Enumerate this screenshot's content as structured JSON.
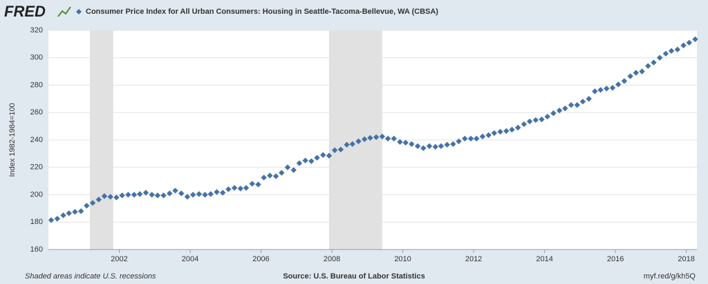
{
  "logo": "FRED",
  "footer": {
    "note": "Shaded areas indicate U.S. recessions",
    "source": "Source: U.S. Bureau of Labor Statistics",
    "link": "myf.red/g/kh5Q"
  },
  "chart_data": {
    "type": "scatter",
    "ylabel": "Index 1982-1984=100",
    "xlim": [
      2000,
      2018.3
    ],
    "ylim": [
      160,
      320
    ],
    "xticks": [
      2002,
      2004,
      2006,
      2008,
      2010,
      2012,
      2014,
      2016,
      2018
    ],
    "yticks": [
      160,
      180,
      200,
      220,
      240,
      260,
      280,
      300,
      320
    ],
    "grid": true,
    "recessions": [
      [
        2001.17,
        2001.83
      ],
      [
        2007.92,
        2009.42
      ]
    ],
    "x": [
      2000.08,
      2000.25,
      2000.42,
      2000.58,
      2000.75,
      2000.92,
      2001.08,
      2001.25,
      2001.42,
      2001.58,
      2001.75,
      2001.92,
      2002.08,
      2002.25,
      2002.42,
      2002.58,
      2002.75,
      2002.92,
      2003.08,
      2003.25,
      2003.42,
      2003.58,
      2003.75,
      2003.92,
      2004.08,
      2004.25,
      2004.42,
      2004.58,
      2004.75,
      2004.92,
      2005.08,
      2005.25,
      2005.42,
      2005.58,
      2005.75,
      2005.92,
      2006.08,
      2006.25,
      2006.42,
      2006.58,
      2006.75,
      2006.92,
      2007.08,
      2007.25,
      2007.42,
      2007.58,
      2007.75,
      2007.92,
      2008.08,
      2008.25,
      2008.42,
      2008.58,
      2008.75,
      2008.92,
      2009.08,
      2009.25,
      2009.42,
      2009.58,
      2009.75,
      2009.92,
      2010.08,
      2010.25,
      2010.42,
      2010.58,
      2010.75,
      2010.92,
      2011.08,
      2011.25,
      2011.42,
      2011.58,
      2011.75,
      2011.92,
      2012.08,
      2012.25,
      2012.42,
      2012.58,
      2012.75,
      2012.92,
      2013.08,
      2013.25,
      2013.42,
      2013.58,
      2013.75,
      2013.92,
      2014.08,
      2014.25,
      2014.42,
      2014.58,
      2014.75,
      2014.92,
      2015.08,
      2015.25,
      2015.42,
      2015.58,
      2015.75,
      2015.92,
      2016.08,
      2016.25,
      2016.42,
      2016.58,
      2016.75,
      2016.92,
      2017.08,
      2017.25,
      2017.42,
      2017.58,
      2017.75,
      2017.92,
      2018.08,
      2018.25
    ],
    "series": [
      {
        "name": "Consumer Price Index for All Urban Consumers: Housing in Seattle-Tacoma-Bellevue, WA (CBSA)",
        "color": "#4572a7",
        "values": [
          181.5,
          182.5,
          185,
          186.5,
          187.5,
          188,
          192,
          194,
          196.5,
          199,
          198.5,
          198,
          199.5,
          200,
          200,
          200.5,
          201.5,
          200,
          199.5,
          199.5,
          201,
          203,
          201,
          198.5,
          200,
          200.5,
          200,
          200.5,
          202,
          201.5,
          204,
          205,
          204.5,
          205,
          208,
          207.5,
          212.5,
          214,
          213.5,
          216,
          220,
          218,
          223,
          225,
          224.5,
          227,
          229,
          228.5,
          232.5,
          233,
          236.5,
          237,
          239,
          240.5,
          241.5,
          242,
          242.5,
          241,
          241,
          238.5,
          238,
          237,
          235.5,
          234,
          235.5,
          235,
          235.5,
          236.5,
          237,
          239,
          241,
          241,
          241,
          242.5,
          243.5,
          245,
          246,
          246.5,
          247.5,
          249,
          251.5,
          253.5,
          254.5,
          255,
          257,
          259.5,
          261.5,
          263,
          265.5,
          265.5,
          268,
          270,
          275.5,
          276.5,
          277.5,
          278,
          280.5,
          283,
          286.5,
          289,
          290,
          294,
          296.5,
          300,
          303,
          305,
          306,
          309,
          311,
          313.5
        ]
      }
    ]
  }
}
